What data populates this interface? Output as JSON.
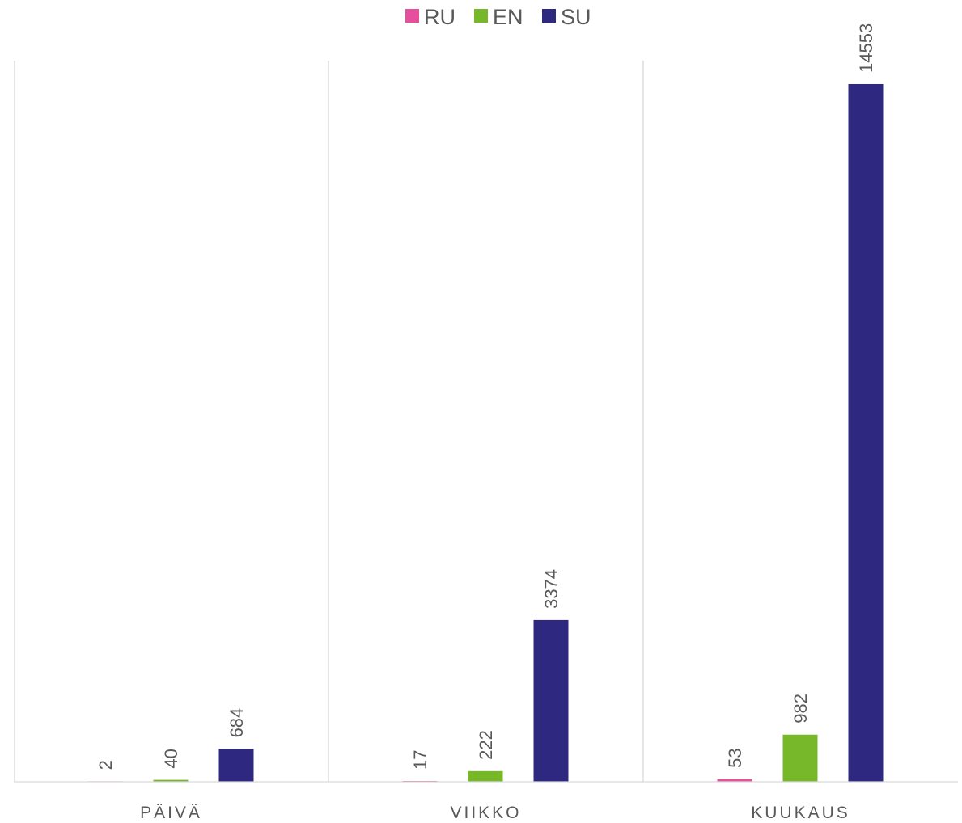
{
  "chart_data": {
    "type": "bar",
    "title": "",
    "xlabel": "",
    "ylabel": "",
    "categories": [
      "PÄIVÄ",
      "VIIKKO",
      "KUUKAUS"
    ],
    "series": [
      {
        "name": "RU",
        "color": "#e64f9b",
        "values": [
          2,
          17,
          53
        ]
      },
      {
        "name": "EN",
        "color": "#76b82a",
        "values": [
          40,
          222,
          982
        ]
      },
      {
        "name": "SU",
        "color": "#2e2880",
        "values": [
          684,
          3374,
          14553
        ]
      }
    ],
    "ylim": [
      0,
      15000
    ],
    "y_axis_visible": false,
    "grid": "vertical category separators",
    "legend_position": "top-center",
    "data_labels": "rotated vertical above bars"
  }
}
